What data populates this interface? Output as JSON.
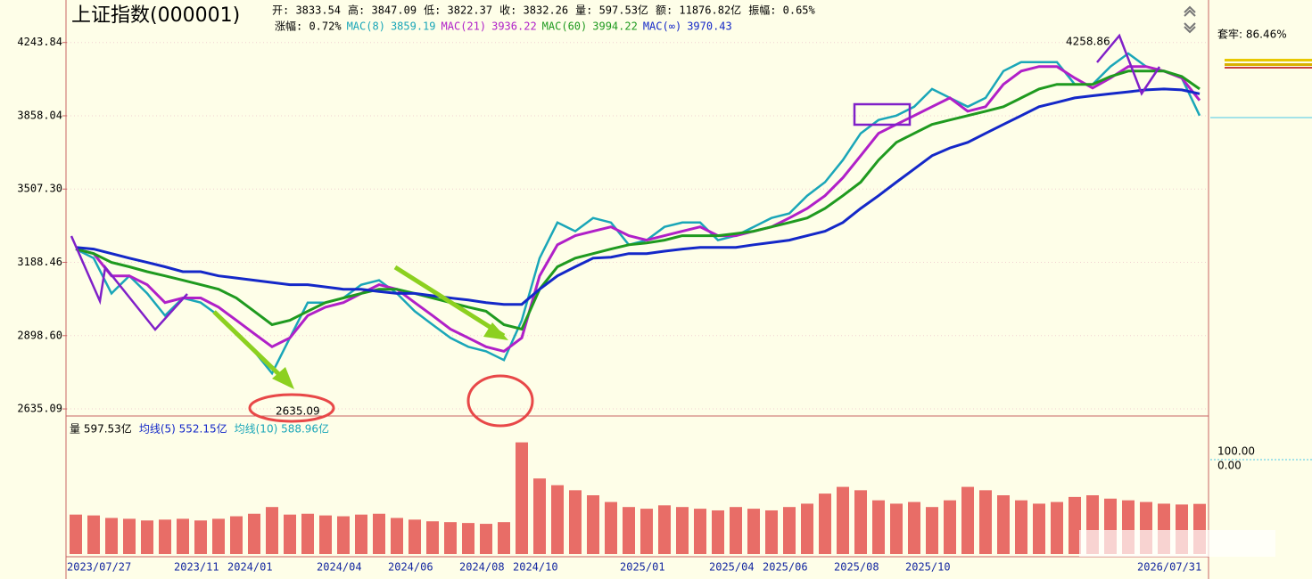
{
  "chart_data": {
    "type": "line",
    "title": "上证指数(000001)",
    "quote": [
      "开: 3833.54",
      "高: 3847.09",
      "低: 3822.37",
      "收: 3832.26",
      "量: 597.53亿",
      "额: 11876.82亿",
      "振幅: 0.65%"
    ],
    "change": "涨幅: 0.72%",
    "log_scale": true,
    "ylim": [
      2617,
      4485
    ],
    "yticks": [
      4243.84,
      3858.04,
      {
        "value": 3507.3,
        "label": "3507.30"
      },
      3188.46,
      {
        "value": 2898.6,
        "label": "2898.60"
      },
      2635.09
    ],
    "categories": [
      "2023/07/27",
      null,
      null,
      null,
      null,
      null,
      "2023/11",
      null,
      null,
      "2024/01",
      null,
      null,
      null,
      null,
      "2024/04",
      null,
      null,
      null,
      "2024/06",
      null,
      null,
      null,
      "2024/08",
      null,
      null,
      "2024/10",
      null,
      null,
      null,
      null,
      null,
      "2025/01",
      null,
      null,
      null,
      null,
      "2025/04",
      null,
      null,
      "2025/06",
      null,
      null,
      null,
      "2025/08",
      null,
      null,
      null,
      "2025/10",
      null,
      null,
      null,
      null,
      null,
      null,
      null,
      null,
      null,
      null,
      null,
      null,
      "2026/07/31",
      null,
      null,
      null
    ],
    "series": [
      {
        "name": "MAC(8)",
        "last": 3859.19,
        "color": "#1aa6b8",
        "values": [
          3244,
          3206,
          3062,
          3133,
          3062,
          2975,
          3044,
          3026,
          2975,
          2906,
          2840,
          2760,
          2890,
          3026,
          3026,
          3044,
          3097,
          3115,
          3062,
          2992,
          2940,
          2890,
          2857,
          2840,
          2808,
          2957,
          3206,
          3358,
          3320,
          3378,
          3358,
          3262,
          3282,
          3339,
          3358,
          3358,
          3282,
          3301,
          3339,
          3378,
          3398,
          3477,
          3539,
          3642,
          3771,
          3837,
          3859,
          3904,
          3995,
          3949,
          3904,
          3949,
          4089,
          4137,
          4137,
          4137,
          4019,
          4019,
          4113,
          4184,
          4113,
          4089,
          4052,
          3859
        ]
      },
      {
        "name": "MAC(21)",
        "last": 3936.22,
        "color": "#b020c8",
        "values": [
          3244,
          3225,
          3133,
          3133,
          3097,
          3026,
          3044,
          3044,
          3008,
          2957,
          2906,
          2857,
          2890,
          2975,
          3008,
          3026,
          3062,
          3097,
          3079,
          3026,
          2975,
          2923,
          2890,
          2857,
          2840,
          2890,
          3133,
          3262,
          3301,
          3320,
          3339,
          3301,
          3282,
          3301,
          3320,
          3339,
          3301,
          3301,
          3320,
          3339,
          3378,
          3420,
          3477,
          3559,
          3663,
          3771,
          3815,
          3859,
          3904,
          3949,
          3881,
          3904,
          4019,
          4089,
          4113,
          4113,
          4052,
          4000,
          4052,
          4113,
          4113,
          4089,
          4052,
          3936
        ]
      },
      {
        "name": "MAC(60)",
        "last": 3994.22,
        "color": "#1f9a1f",
        "values": [
          3244,
          3225,
          3188,
          3170,
          3150,
          3133,
          3115,
          3097,
          3079,
          3044,
          2992,
          2940,
          2957,
          2992,
          3026,
          3044,
          3062,
          3079,
          3079,
          3062,
          3044,
          3026,
          3008,
          2992,
          2940,
          2923,
          3079,
          3170,
          3206,
          3225,
          3244,
          3262,
          3270,
          3282,
          3301,
          3301,
          3301,
          3310,
          3320,
          3339,
          3358,
          3378,
          3420,
          3477,
          3539,
          3642,
          3727,
          3771,
          3815,
          3837,
          3859,
          3881,
          3904,
          3949,
          3995,
          4019,
          4019,
          4019,
          4060,
          4089,
          4089,
          4089,
          4060,
          3995
        ]
      },
      {
        "name": "MAC(∞)",
        "last": 3970.43,
        "color": "#1428c8",
        "values": [
          3251,
          3244,
          3225,
          3206,
          3188,
          3170,
          3150,
          3150,
          3133,
          3124,
          3115,
          3106,
          3097,
          3097,
          3088,
          3079,
          3079,
          3070,
          3062,
          3062,
          3053,
          3044,
          3036,
          3026,
          3019,
          3019,
          3079,
          3133,
          3170,
          3206,
          3210,
          3225,
          3225,
          3235,
          3244,
          3251,
          3251,
          3251,
          3262,
          3272,
          3282,
          3301,
          3320,
          3358,
          3420,
          3477,
          3539,
          3600,
          3663,
          3700,
          3727,
          3771,
          3815,
          3859,
          3904,
          3926,
          3949,
          3960,
          3970,
          3980,
          3990,
          3995,
          3990,
          3970
        ]
      }
    ],
    "annotations": [
      "4258.86",
      "2635.09"
    ],
    "volume": {
      "legend": [
        {
          "text": "量 597.53亿",
          "color": "#000000"
        },
        {
          "text": "均线(5) 552.15亿",
          "color": "#1428c8"
        },
        {
          "text": "均线(10) 588.96亿",
          "color": "#1aa6b8"
        }
      ],
      "color": "#e03c3c",
      "ylim": [
        0,
        1400
      ],
      "values": [
        470,
        460,
        430,
        420,
        400,
        410,
        420,
        400,
        420,
        450,
        480,
        560,
        470,
        480,
        460,
        450,
        470,
        480,
        430,
        410,
        390,
        380,
        370,
        360,
        380,
        1330,
        900,
        820,
        760,
        700,
        620,
        560,
        540,
        580,
        560,
        540,
        520,
        560,
        540,
        520,
        560,
        600,
        720,
        800,
        760,
        640,
        600,
        620,
        560,
        640,
        800,
        760,
        700,
        640,
        600,
        620,
        680,
        700,
        660,
        640,
        620,
        600,
        590,
        597.53
      ]
    },
    "side_panel": {
      "label": "套牢: 86.46%",
      "levels": [
        "100.00",
        "0.00"
      ]
    }
  }
}
